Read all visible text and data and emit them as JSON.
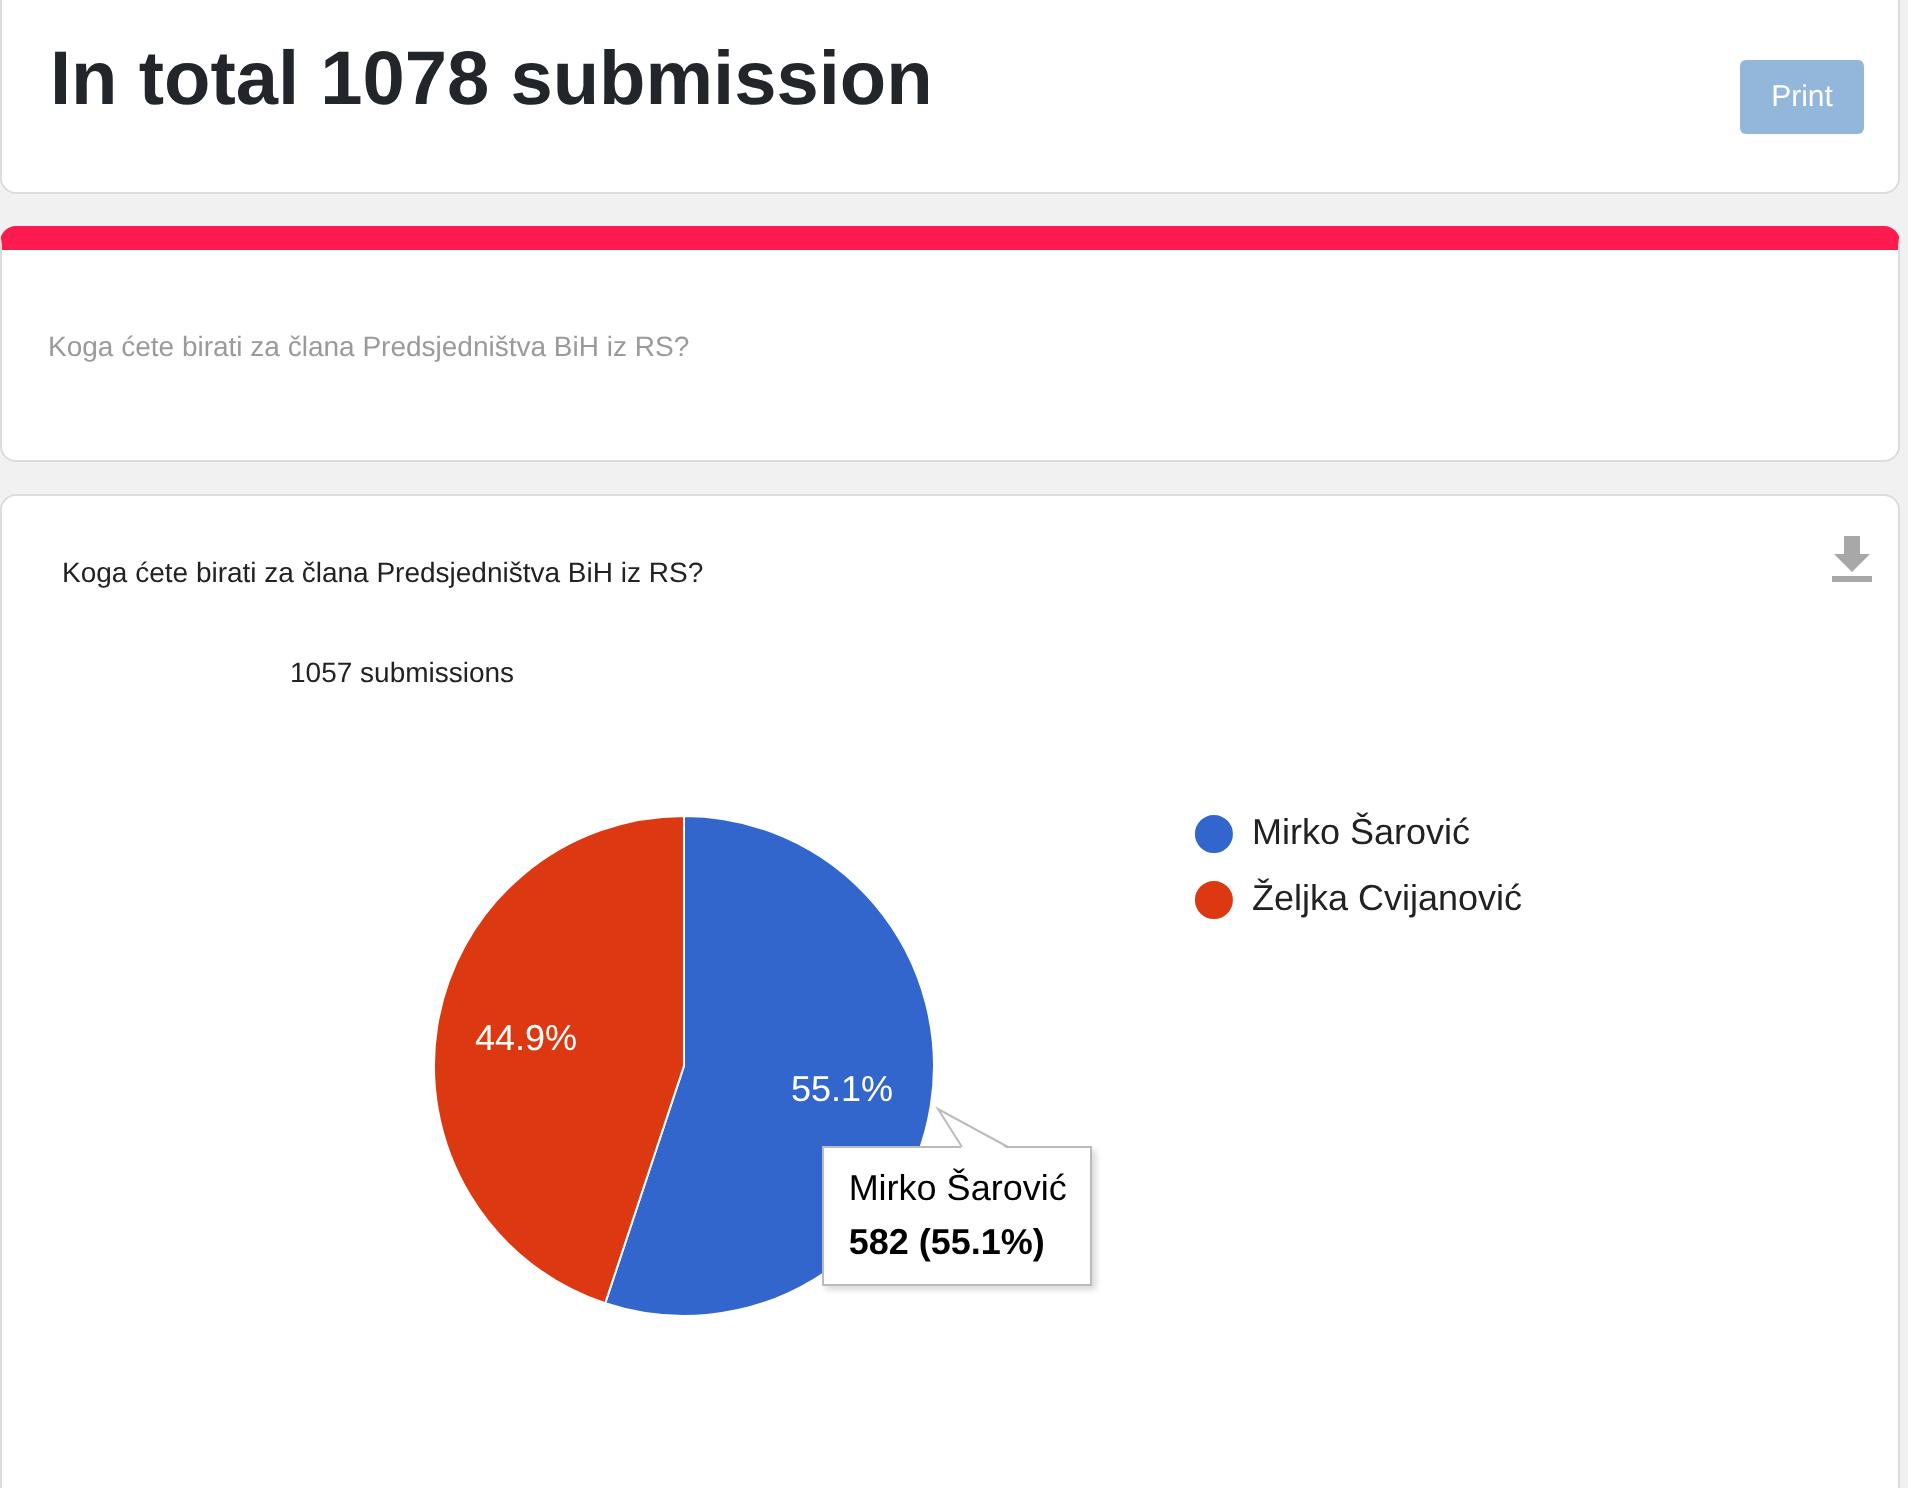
{
  "chart_data": {
    "type": "pie",
    "title": "Koga ćete birati za člana Predsjedništva BiH iz RS?",
    "subtitle": "1057 submissions",
    "categories": [
      "Mirko Šarović",
      "Željka Cvijanović"
    ],
    "values": [
      55.1,
      44.9
    ],
    "colors": [
      "#3366cc",
      "#dc3912"
    ],
    "value_labels": [
      "55.1%",
      "44.9%"
    ],
    "legend": "right",
    "annotations": [
      "In total 1078 submission",
      "Koga ćete birati za člana Predsjedništva BiH iz RS?",
      "Print",
      {
        "text": "582 (55.1%)",
        "x": "Mirko Šarović"
      }
    ]
  }
}
